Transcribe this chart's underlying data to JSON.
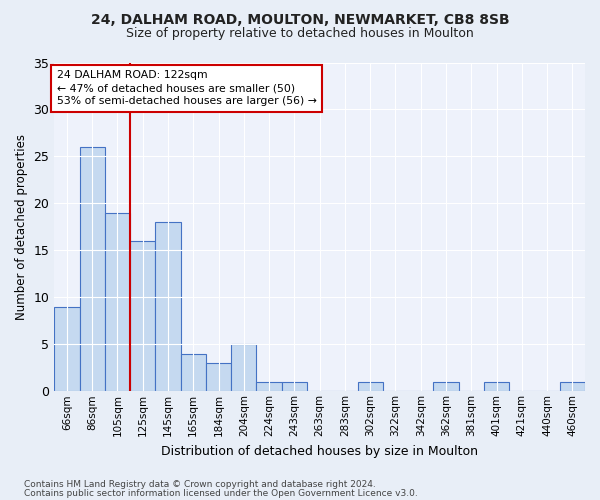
{
  "title1": "24, DALHAM ROAD, MOULTON, NEWMARKET, CB8 8SB",
  "title2": "Size of property relative to detached houses in Moulton",
  "xlabel": "Distribution of detached houses by size in Moulton",
  "ylabel": "Number of detached properties",
  "categories": [
    "66sqm",
    "86sqm",
    "105sqm",
    "125sqm",
    "145sqm",
    "165sqm",
    "184sqm",
    "204sqm",
    "224sqm",
    "243sqm",
    "263sqm",
    "283sqm",
    "302sqm",
    "322sqm",
    "342sqm",
    "362sqm",
    "381sqm",
    "401sqm",
    "421sqm",
    "440sqm",
    "460sqm"
  ],
  "values": [
    9,
    26,
    19,
    16,
    18,
    4,
    3,
    5,
    1,
    1,
    0,
    0,
    1,
    0,
    0,
    1,
    0,
    1,
    0,
    0,
    1
  ],
  "bar_color": "#c5d9f0",
  "bar_edge_color": "#4472c4",
  "vline_x": 2.5,
  "annotation_text": "24 DALHAM ROAD: 122sqm\n← 47% of detached houses are smaller (50)\n53% of semi-detached houses are larger (56) →",
  "annotation_box_color": "#ffffff",
  "annotation_box_edge_color": "#cc0000",
  "vline_color": "#cc0000",
  "ylim": [
    0,
    35
  ],
  "yticks": [
    0,
    5,
    10,
    15,
    20,
    25,
    30,
    35
  ],
  "footer1": "Contains HM Land Registry data © Crown copyright and database right 2024.",
  "footer2": "Contains public sector information licensed under the Open Government Licence v3.0.",
  "bg_color": "#e8eef7",
  "plot_bg_color": "#eef2fb"
}
